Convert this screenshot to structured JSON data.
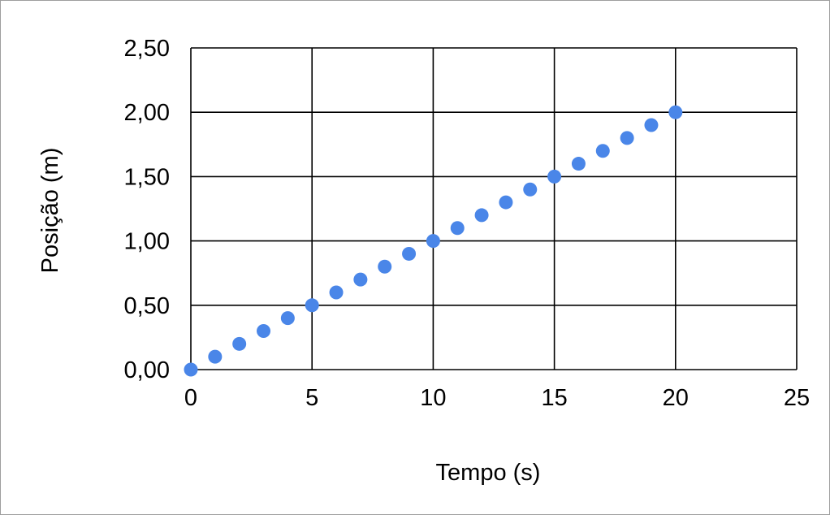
{
  "chart_data": {
    "type": "scatter",
    "xlabel": "Tempo (s)",
    "ylabel": "Posição (m)",
    "xlim": [
      0,
      25
    ],
    "ylim": [
      0,
      2.5
    ],
    "x_ticks": [
      "0",
      "5",
      "10",
      "15",
      "20",
      "25"
    ],
    "y_ticks": [
      "0,00",
      "0,50",
      "1,00",
      "1,50",
      "2,00",
      "2,50"
    ],
    "grid": true,
    "marker_color": "#4a86e8",
    "series": [
      {
        "x": [
          0,
          1,
          2,
          3,
          4,
          5,
          6,
          7,
          8,
          9,
          10,
          11,
          12,
          13,
          14,
          15,
          16,
          17,
          18,
          19,
          20
        ],
        "y": [
          0,
          0.1,
          0.2,
          0.3,
          0.4,
          0.5,
          0.6,
          0.7,
          0.8,
          0.9,
          1.0,
          1.1,
          1.2,
          1.3,
          1.4,
          1.5,
          1.6,
          1.7,
          1.8,
          1.9,
          2.0
        ]
      }
    ]
  }
}
